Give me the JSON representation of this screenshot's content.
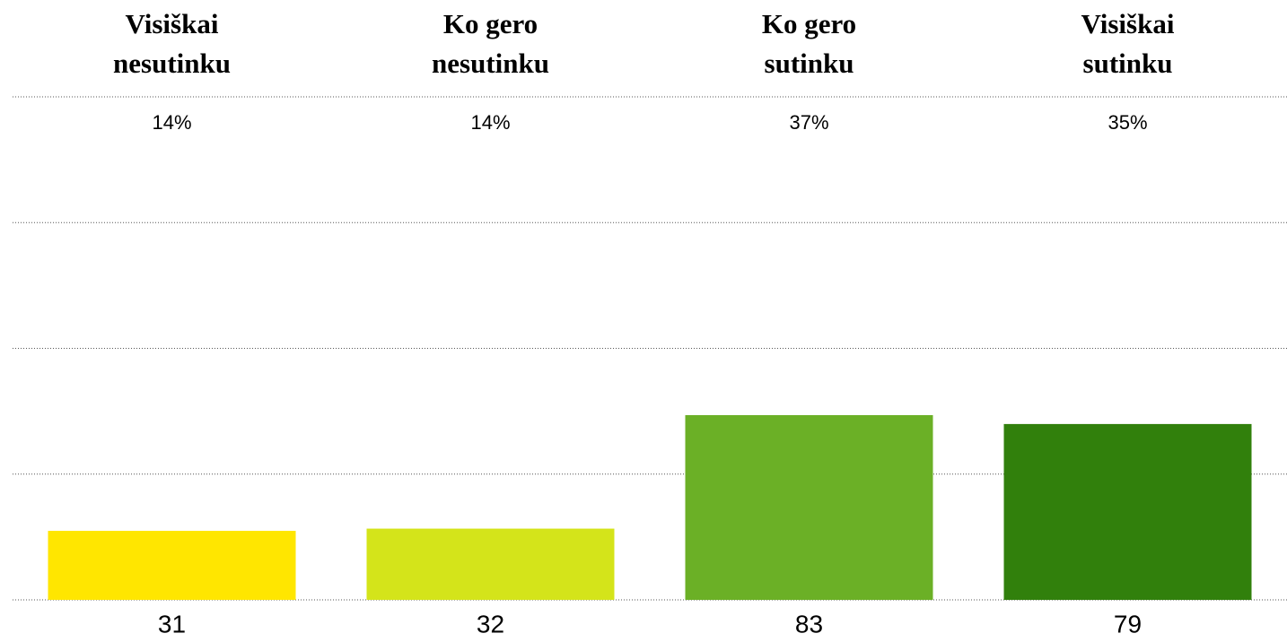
{
  "chart_data": {
    "type": "bar",
    "categories": [
      [
        "Visiškai",
        "nesutinku"
      ],
      [
        "Ko gero",
        "nesutinku"
      ],
      [
        "Ko gero",
        "sutinku"
      ],
      [
        "Visiškai",
        "sutinku"
      ]
    ],
    "values": [
      31,
      32,
      83,
      79
    ],
    "percent_labels": [
      "14%",
      "14%",
      "37%",
      "35%"
    ],
    "colors": [
      "#ffe600",
      "#d4e41a",
      "#6bb026",
      "#31800c"
    ],
    "ylim": [
      0,
      226
    ],
    "yticks": [
      0,
      56.5,
      113,
      169.5,
      226
    ],
    "grid": true
  }
}
